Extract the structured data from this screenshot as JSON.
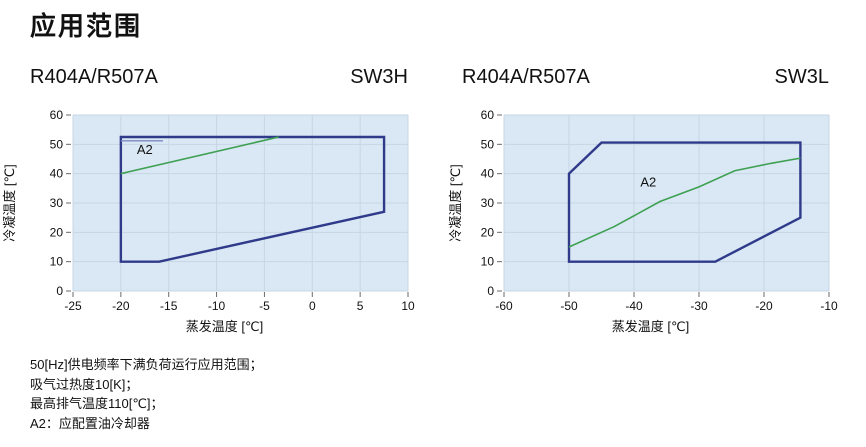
{
  "page": {
    "title": "应用范围"
  },
  "colors": {
    "envelope": "#2f3b8a",
    "envelope_secondary": "#7d89c0",
    "a2_line": "#3fa053",
    "plot_bg": "#d9e8f4",
    "grid": "#c8d6e4",
    "tick": "#6a6a6a",
    "text": "#111111"
  },
  "chart_data": [
    {
      "type": "area",
      "title": "R404A/R507A",
      "model": "SW3H",
      "xlabel": "蒸发温度 [℃]",
      "ylabel": "冷凝温度 [℃]",
      "xlim": [
        -25,
        10
      ],
      "ylim": [
        0,
        60
      ],
      "x_ticks": [
        -25,
        -20,
        -15,
        -10,
        -5,
        0,
        5,
        10
      ],
      "y_ticks": [
        0,
        10,
        20,
        30,
        40,
        50,
        60
      ],
      "grid": true,
      "legend": false,
      "series": [
        {
          "kind": "envelope",
          "closed": true,
          "points": [
            [
              -20,
              52.5
            ],
            [
              7.5,
              52.5
            ],
            [
              7.5,
              27
            ],
            [
              -16,
              10
            ],
            [
              -20,
              10
            ]
          ]
        },
        {
          "kind": "secondary",
          "closed": false,
          "points": [
            [
              -20,
              51.2
            ],
            [
              -15.6,
              51.2
            ]
          ]
        },
        {
          "kind": "a2",
          "closed": false,
          "points": [
            [
              -20,
              40
            ],
            [
              -3.5,
              52.5
            ]
          ]
        }
      ],
      "annotations": [
        {
          "text": "A2",
          "x": -17.5,
          "y": 48
        }
      ]
    },
    {
      "type": "area",
      "title": "R404A/R507A",
      "model": "SW3L",
      "xlabel": "蒸发温度 [℃]",
      "ylabel": "冷凝温度 [℃]",
      "xlim": [
        -60,
        -10
      ],
      "ylim": [
        0,
        60
      ],
      "x_ticks": [
        -60,
        -50,
        -40,
        -30,
        -20,
        -10
      ],
      "y_ticks": [
        0,
        10,
        20,
        30,
        40,
        50,
        60
      ],
      "grid": true,
      "legend": false,
      "series": [
        {
          "kind": "envelope",
          "closed": true,
          "points": [
            [
              -50,
              10
            ],
            [
              -50,
              40
            ],
            [
              -45,
              50.6
            ],
            [
              -14.4,
              50.6
            ],
            [
              -14.4,
              25
            ],
            [
              -27.5,
              10
            ]
          ]
        },
        {
          "kind": "a2",
          "closed": false,
          "points": [
            [
              -50,
              15
            ],
            [
              -43,
              22
            ],
            [
              -36,
              30.5
            ],
            [
              -30,
              35.5
            ],
            [
              -24.5,
              41
            ],
            [
              -19,
              43.5
            ],
            [
              -14.4,
              45.3
            ]
          ]
        }
      ],
      "annotations": [
        {
          "text": "A2",
          "x": -37.8,
          "y": 37
        }
      ]
    }
  ],
  "footer": {
    "notes": [
      "50[Hz]供电频率下满负荷运行应用范围；",
      "吸气过热度10[K]；",
      "最高排气温度110[℃]；",
      "A2：应配置油冷却器"
    ]
  }
}
